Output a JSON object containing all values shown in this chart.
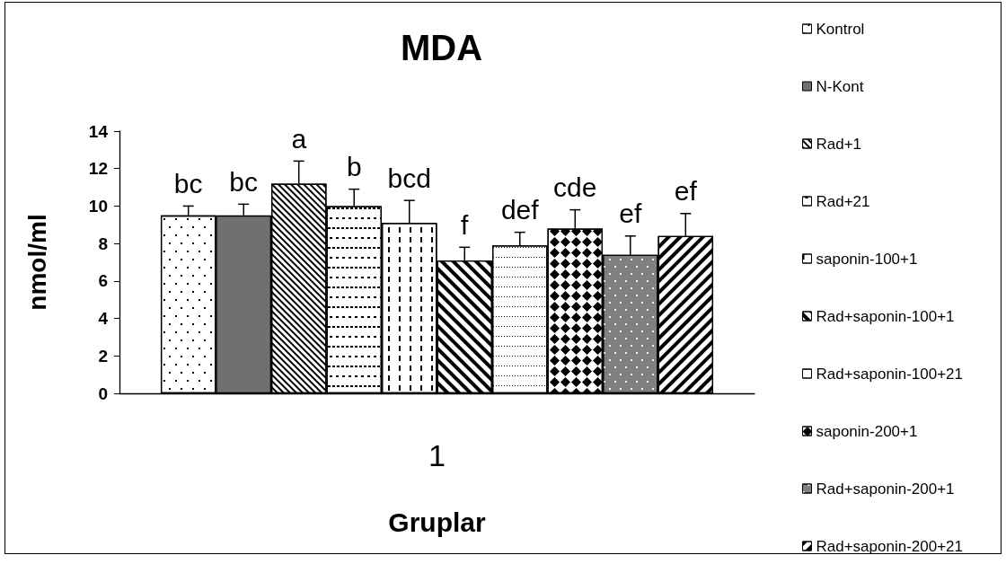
{
  "chart_data": {
    "type": "bar",
    "title": "MDA",
    "xlabel": "Gruplar",
    "ylabel": "nmol/ml",
    "categories": [
      "1"
    ],
    "series": [
      {
        "name": "Kontrol",
        "color": "#ffffff",
        "values": [
          9.5
        ],
        "errors": [
          [
            9.5,
            10.0
          ]
        ],
        "value_labels": [
          "bc"
        ]
      },
      {
        "name": "N-Kont",
        "color": "#707070",
        "values": [
          9.5
        ],
        "errors": [
          [
            9.5,
            10.1
          ]
        ],
        "value_labels": [
          "bc"
        ]
      },
      {
        "name": "Rad+1",
        "color": "#ffffff",
        "values": [
          11.2
        ],
        "errors": [
          [
            11.2,
            12.4
          ]
        ],
        "value_labels": [
          "a"
        ]
      },
      {
        "name": "Rad+21",
        "color": "#ffffff",
        "values": [
          10.0
        ],
        "errors": [
          [
            10.0,
            10.9
          ]
        ],
        "value_labels": [
          "b"
        ]
      },
      {
        "name": "saponin-100+1",
        "color": "#ffffff",
        "values": [
          9.1
        ],
        "errors": [
          [
            9.1,
            10.3
          ]
        ],
        "value_labels": [
          "bcd"
        ]
      },
      {
        "name": "Rad+saponin-100+1",
        "color": "#ffffff",
        "values": [
          7.1
        ],
        "errors": [
          [
            7.1,
            7.8
          ]
        ],
        "value_labels": [
          "f"
        ]
      },
      {
        "name": "Rad+saponin-100+21",
        "color": "#ffffff",
        "values": [
          7.9
        ],
        "errors": [
          [
            7.9,
            8.6
          ]
        ],
        "value_labels": [
          "def"
        ]
      },
      {
        "name": "saponin-200+1",
        "color": "#ffffff",
        "values": [
          8.8
        ],
        "errors": [
          [
            8.8,
            9.8
          ]
        ],
        "value_labels": [
          "cde"
        ]
      },
      {
        "name": "Rad+saponin-200+1",
        "color": "#808080",
        "values": [
          7.4
        ],
        "errors": [
          [
            7.4,
            8.4
          ]
        ],
        "value_labels": [
          "ef"
        ]
      },
      {
        "name": "Rad+saponin-200+21",
        "color": "#ffffff",
        "values": [
          8.4
        ],
        "errors": [
          [
            8.4,
            9.6
          ]
        ],
        "value_labels": [
          "ef"
        ]
      }
    ],
    "ylim": [
      0,
      14
    ],
    "yticks": [
      0,
      2,
      4,
      6,
      8,
      10,
      12,
      14
    ],
    "legend": "right"
  }
}
